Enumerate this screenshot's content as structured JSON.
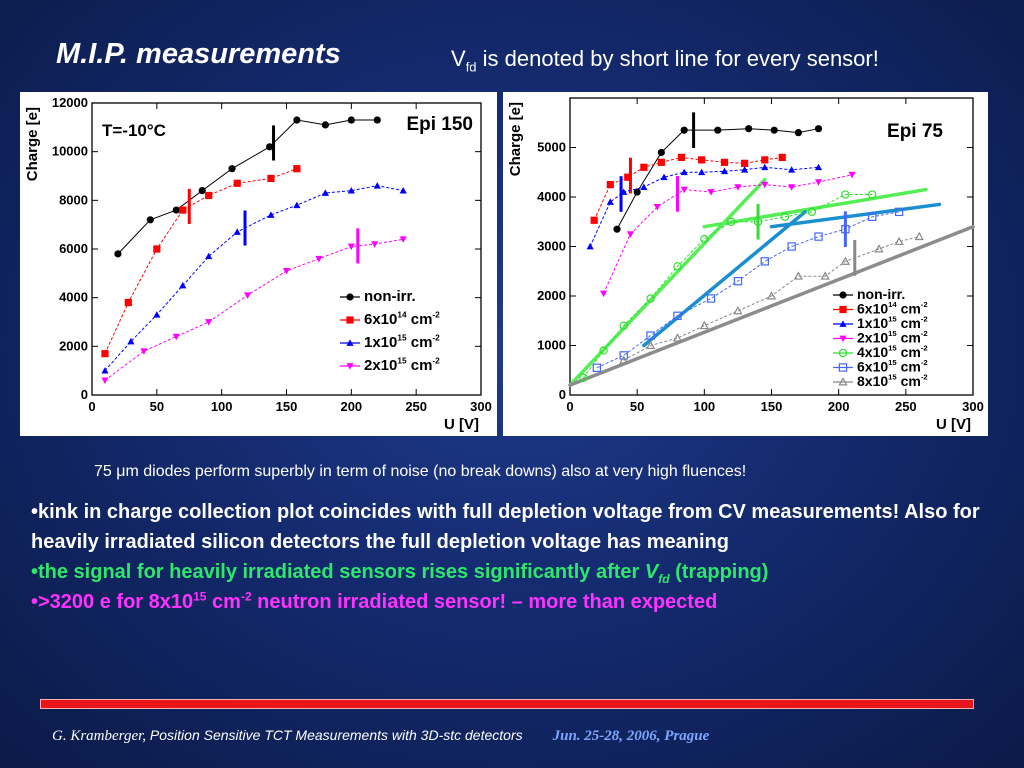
{
  "slide": {
    "title": "M.I.P. measurements",
    "subtitle_pre": "V",
    "subtitle_sub": "fd",
    "subtitle_post": " is denoted by short line for every sensor!",
    "caption": "75 μm diodes perform superbly in term of noise (no break downs) also at very high fluences!",
    "bullet1": "•kink in charge collection plot coincides with full depletion voltage from CV measurements! Also for heavily irradiated silicon detectors the full depletion voltage has meaning",
    "bullet2_pre": "•the signal for heavily irradiated sensors rises significantly after ",
    "bullet2_v": "V",
    "bullet2_sub": "fd",
    "bullet2_post": " (trapping)",
    "bullet3_pre": "•>3200 e for 8x10",
    "bullet3_sup1": "15",
    "bullet3_mid": " cm",
    "bullet3_sup2": "-2",
    "bullet3_post": " neutron irradiated sensor! – more than expected",
    "footer_author": "G. Kramberger,",
    "footer_title": " Position Sensitive TCT Measurements with 3D-stc detectors",
    "footer_date": "Jun.  25-28, 2006, Prague"
  },
  "colors": {
    "nonirr": "#000000",
    "f6e14": "#ff0000",
    "f1e15": "#0000ff",
    "f2e15": "#ff00ff",
    "f4e15": "#33dd33",
    "f6e15": "#4466ff",
    "f8e15": "#888888",
    "fit_green": "#55ee55",
    "fit_blue": "#1a8fd0",
    "fit_gray": "#8c8c8c"
  },
  "chart_data": [
    {
      "type": "line",
      "title": "Epi 150",
      "annotation": "T=-10°C",
      "xlabel": "U [V]",
      "ylabel": "Charge [e]",
      "xlim": [
        0,
        300
      ],
      "ylim": [
        0,
        12000
      ],
      "xticks": [
        0,
        50,
        100,
        150,
        200,
        250,
        300
      ],
      "yticks": [
        0,
        2000,
        4000,
        6000,
        8000,
        10000,
        12000
      ],
      "legend_position": "bottom-right",
      "series": [
        {
          "name": "non-irr.",
          "color_key": "nonirr",
          "marker": "circle",
          "x": [
            20,
            45,
            65,
            85,
            108,
            137,
            158,
            180,
            200,
            220
          ],
          "y": [
            5800,
            7200,
            7600,
            8400,
            9300,
            10200,
            11300,
            11100,
            11300,
            11300
          ],
          "vfd": 140
        },
        {
          "name": "6x10^14 cm^-2",
          "color_key": "f6e14",
          "marker": "square",
          "x": [
            10,
            28,
            50,
            70,
            90,
            112,
            138,
            158
          ],
          "y": [
            1700,
            3800,
            6000,
            7600,
            8200,
            8700,
            8900,
            9300
          ],
          "vfd": 75
        },
        {
          "name": "1x10^15 cm^-2",
          "color_key": "f1e15",
          "marker": "triangle-up",
          "x": [
            10,
            30,
            50,
            70,
            90,
            112,
            138,
            158,
            180,
            200,
            220,
            240
          ],
          "y": [
            1000,
            2200,
            3300,
            4500,
            5700,
            6700,
            7400,
            7800,
            8300,
            8400,
            8600,
            8400
          ],
          "vfd": 118
        },
        {
          "name": "2x10^15 cm^-2",
          "color_key": "f2e15",
          "marker": "triangle-down",
          "x": [
            10,
            40,
            65,
            90,
            120,
            150,
            175,
            200,
            218,
            240
          ],
          "y": [
            600,
            1800,
            2400,
            3000,
            4100,
            5100,
            5600,
            6100,
            6200,
            6400
          ],
          "vfd": 205
        }
      ]
    },
    {
      "type": "line",
      "title": "Epi 75",
      "xlabel": "U [V]",
      "ylabel": "Charge [e]",
      "xlim": [
        0,
        300
      ],
      "ylim": [
        0,
        6000
      ],
      "xticks": [
        0,
        50,
        100,
        150,
        200,
        250,
        300
      ],
      "yticks": [
        0,
        1000,
        2000,
        3000,
        4000,
        5000
      ],
      "legend_position": "bottom-right",
      "series": [
        {
          "name": "non-irr.",
          "color_key": "nonirr",
          "marker": "circle",
          "x": [
            35,
            50,
            68,
            85,
            110,
            133,
            152,
            170,
            185
          ],
          "y": [
            3350,
            4100,
            4900,
            5350,
            5350,
            5380,
            5350,
            5300,
            5380
          ],
          "vfd": 92
        },
        {
          "name": "6x10^14 cm^-2",
          "color_key": "f6e14",
          "marker": "square",
          "x": [
            18,
            30,
            43,
            55,
            68,
            83,
            98,
            115,
            130,
            145,
            158
          ],
          "y": [
            3530,
            4250,
            4400,
            4600,
            4700,
            4800,
            4750,
            4700,
            4680,
            4750,
            4800
          ],
          "vfd": 45
        },
        {
          "name": "1x10^15 cm^-2",
          "color_key": "f1e15",
          "marker": "triangle-up",
          "x": [
            15,
            30,
            40,
            55,
            70,
            85,
            98,
            115,
            130,
            145,
            165,
            185
          ],
          "y": [
            3000,
            3900,
            4100,
            4200,
            4400,
            4500,
            4500,
            4520,
            4550,
            4600,
            4550,
            4600
          ],
          "vfd": 38
        },
        {
          "name": "2x10^15 cm^-2",
          "color_key": "f2e15",
          "marker": "triangle-down",
          "x": [
            25,
            45,
            65,
            85,
            105,
            125,
            145,
            165,
            185,
            210
          ],
          "y": [
            2050,
            3250,
            3800,
            4150,
            4100,
            4200,
            4250,
            4200,
            4300,
            4450
          ],
          "vfd": 80
        },
        {
          "name": "4x10^15 cm^-2",
          "color_key": "f4e15",
          "marker": "circle-open",
          "x": [
            10,
            25,
            40,
            60,
            80,
            100,
            120,
            140,
            160,
            180,
            205,
            225
          ],
          "y": [
            350,
            900,
            1400,
            1950,
            2600,
            3150,
            3500,
            3500,
            3600,
            3700,
            4050,
            4050
          ],
          "vfd": 140
        },
        {
          "name": "6x10^15 cm^-2",
          "color_key": "f6e15",
          "marker": "square-open",
          "x": [
            20,
            40,
            60,
            80,
            105,
            125,
            145,
            165,
            185,
            205,
            225,
            245
          ],
          "y": [
            550,
            800,
            1200,
            1600,
            1950,
            2300,
            2700,
            3000,
            3200,
            3350,
            3600,
            3700
          ],
          "vfd": 205
        },
        {
          "name": "8x10^15 cm^-2",
          "color_key": "f8e15",
          "marker": "triangle-open",
          "x": [
            40,
            60,
            80,
            100,
            125,
            150,
            170,
            190,
            205,
            230,
            245,
            260
          ],
          "y": [
            700,
            1000,
            1150,
            1400,
            1700,
            2000,
            2400,
            2400,
            2700,
            2950,
            3100,
            3200
          ],
          "vfd": 212
        }
      ],
      "fits": [
        {
          "color_key": "fit_green",
          "x": [
            0,
            145
          ],
          "y": [
            200,
            4350
          ]
        },
        {
          "color_key": "fit_green",
          "x": [
            100,
            265
          ],
          "y": [
            3400,
            4150
          ]
        },
        {
          "color_key": "fit_blue",
          "x": [
            55,
            175
          ],
          "y": [
            1000,
            3700
          ]
        },
        {
          "color_key": "fit_blue",
          "x": [
            150,
            275
          ],
          "y": [
            3400,
            3850
          ]
        },
        {
          "color_key": "fit_gray",
          "x": [
            0,
            300
          ],
          "y": [
            200,
            3400
          ]
        }
      ]
    }
  ]
}
